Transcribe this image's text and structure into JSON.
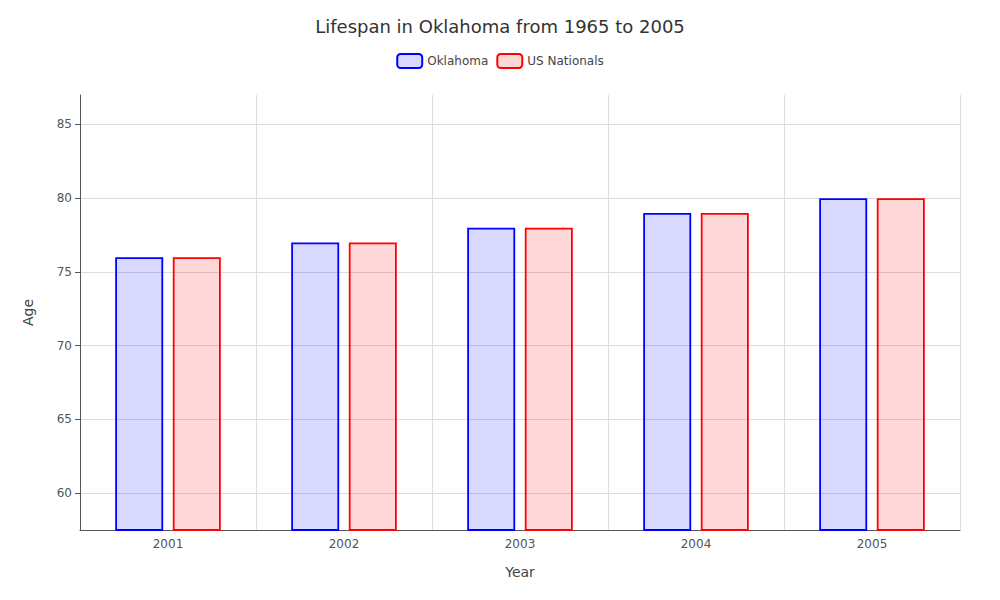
{
  "chart_data": {
    "type": "bar",
    "title": "Lifespan in Oklahoma from 1965 to 2005",
    "xlabel": "Year",
    "ylabel": "Age",
    "categories": [
      "2001",
      "2002",
      "2003",
      "2004",
      "2005"
    ],
    "series": [
      {
        "name": "Oklahoma",
        "color": "#0000ff",
        "values": [
          76.0,
          77.0,
          78.0,
          79.0,
          80.0
        ]
      },
      {
        "name": "US Nationals",
        "color": "#ff0000",
        "values": [
          76.0,
          77.0,
          78.0,
          79.0,
          80.0
        ]
      }
    ],
    "ylim": [
      57.5,
      87
    ],
    "yticks": [
      60,
      65,
      70,
      75,
      80,
      85
    ],
    "grid": true,
    "legend": "top"
  }
}
